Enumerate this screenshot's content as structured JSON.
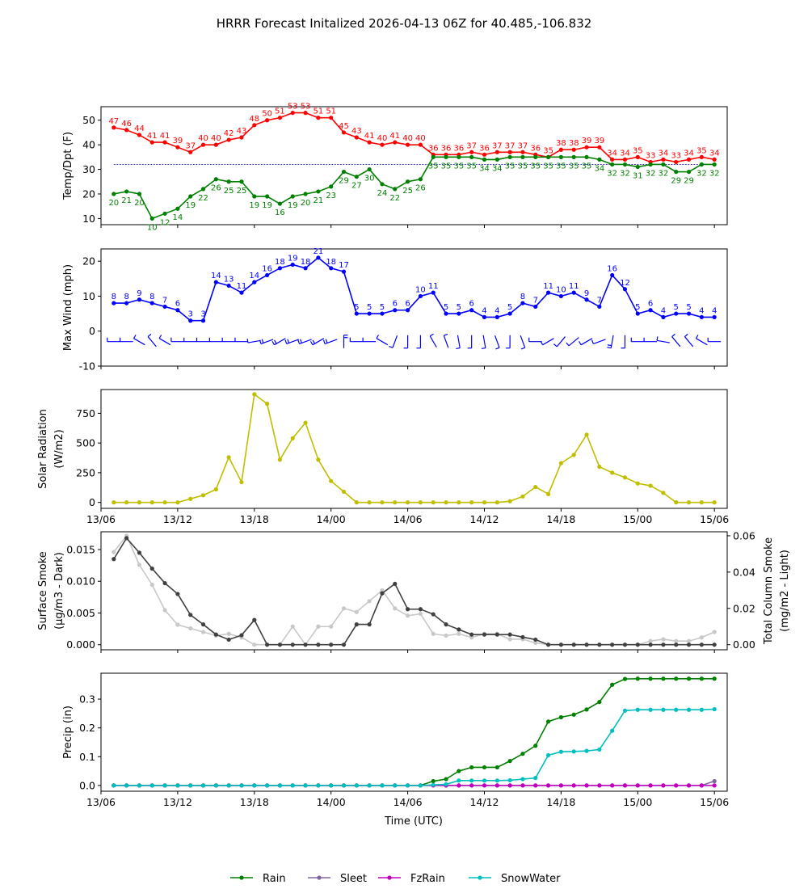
{
  "chart_data": {
    "title": "HRRR Forecast Initalized 2026-04-13 06Z for 40.485,-106.832",
    "x_tick_labels": [
      "13/06",
      "13/12",
      "13/18",
      "14/00",
      "14/06",
      "14/12",
      "14/18",
      "15/00",
      "15/06"
    ],
    "xlabel": "Time (UTC)",
    "x_hours": [
      1,
      2,
      3,
      4,
      5,
      6,
      7,
      8,
      9,
      10,
      11,
      12,
      13,
      14,
      15,
      16,
      17,
      18,
      19,
      20,
      21,
      22,
      23,
      24,
      25,
      26,
      27,
      28,
      29,
      30,
      31,
      32,
      33,
      34,
      35,
      36,
      37,
      38,
      39,
      40,
      41,
      42,
      43,
      44,
      45,
      46,
      47,
      48
    ],
    "panels": [
      {
        "type": "line",
        "ylabel": "Temp/Dpt (F)",
        "ylim": [
          7.5,
          55.5
        ],
        "yticks": [
          10,
          20,
          30,
          40,
          50
        ],
        "reference_line": 32,
        "series": [
          {
            "name": "Temp",
            "color": "#ff0000",
            "values": [
              47,
              46,
              44,
              41,
              41,
              39,
              37,
              40,
              40,
              42,
              43,
              48,
              50,
              51,
              53,
              53,
              51,
              51,
              45,
              43,
              41,
              40,
              41,
              40,
              40,
              36,
              36,
              36,
              37,
              36,
              37,
              37,
              37,
              36,
              35,
              38,
              38,
              39,
              39,
              34,
              34,
              35,
              33,
              34,
              33,
              34,
              35,
              34
            ]
          },
          {
            "name": "Dewpoint",
            "color": "#008000",
            "values": [
              20,
              21,
              20,
              10,
              12,
              14,
              19,
              22,
              26,
              25,
              25,
              19,
              19,
              16,
              19,
              20,
              21,
              23,
              29,
              27,
              30,
              24,
              22,
              25,
              26,
              35,
              35,
              35,
              35,
              34,
              34,
              35,
              35,
              35,
              35,
              35,
              35,
              35,
              34,
              32,
              32,
              31,
              32,
              32,
              29,
              29,
              32,
              32
            ]
          }
        ]
      },
      {
        "type": "line",
        "ylabel": "Max Wind (mph)",
        "ylim": [
          -10,
          23.5
        ],
        "yticks": [
          -10,
          0,
          10,
          20
        ],
        "series": [
          {
            "name": "Max Wind",
            "color": "#0000ff",
            "values": [
              8,
              8,
              9,
              8,
              7,
              6,
              3,
              3,
              14,
              13,
              11,
              14,
              16,
              18,
              19,
              18,
              21,
              18,
              17,
              5,
              5,
              5,
              6,
              6,
              10,
              11,
              5,
              5,
              6,
              4,
              4,
              5,
              8,
              7,
              11,
              10,
              11,
              9,
              7,
              16,
              12,
              5,
              6,
              4,
              5,
              5,
              4,
              4
            ]
          }
        ],
        "wind_directions_deg": [
          270,
          270,
          300,
          320,
          300,
          270,
          270,
          270,
          270,
          270,
          270,
          260,
          250,
          240,
          250,
          250,
          240,
          250,
          360,
          270,
          270,
          300,
          200,
          180,
          180,
          330,
          340,
          170,
          180,
          170,
          160,
          180,
          160,
          270,
          240,
          220,
          230,
          240,
          250,
          190,
          180,
          270,
          270,
          280,
          320,
          320,
          300,
          270
        ]
      },
      {
        "type": "line",
        "ylabel": "Solar Radiation",
        "ylabel_unit": "(W/m2)",
        "ylim": [
          -50,
          950
        ],
        "yticks": [
          0,
          250,
          500,
          750
        ],
        "series": [
          {
            "name": "Solar Radiation",
            "color": "#bfbf00",
            "values": [
              0,
              0,
              0,
              0,
              0,
              0,
              30,
              60,
              110,
              380,
              170,
              910,
              830,
              360,
              540,
              670,
              360,
              180,
              90,
              0,
              0,
              0,
              0,
              0,
              0,
              0,
              0,
              0,
              0,
              0,
              0,
              10,
              50,
              130,
              70,
              330,
              400,
              570,
              300,
              250,
              210,
              160,
              140,
              80,
              0,
              0,
              0,
              0
            ]
          }
        ]
      },
      {
        "type": "line",
        "ylabel": "Surface Smoke",
        "ylabel_unit": "(μg/m3 - Dark)",
        "ylabel_right": "Total Column Smoke",
        "ylabel_right_unit": "(mg/m2 - Light)",
        "ylim": [
          -0.0008,
          0.0178
        ],
        "yticks": [
          0.0,
          0.005,
          0.01,
          0.015
        ],
        "ytick_labels": [
          "0.000",
          "0.005",
          "0.010",
          "0.015"
        ],
        "ylim_right": [
          -0.0028,
          0.0622
        ],
        "yticks_right": [
          0.0,
          0.02,
          0.04,
          0.06
        ],
        "ytick_labels_right": [
          "0.00",
          "0.02",
          "0.04",
          "0.06"
        ],
        "series": [
          {
            "name": "Surface Smoke",
            "color": "#404040",
            "axis": "left",
            "values": [
              0.0135,
              0.0168,
              0.0145,
              0.012,
              0.0097,
              0.008,
              0.0047,
              0.0032,
              0.0016,
              0.0008,
              0.0015,
              0.0039,
              0.0,
              0.0,
              0.0,
              0.0,
              0.0,
              0.0,
              0.0,
              0.0032,
              0.0032,
              0.0081,
              0.0096,
              0.0056,
              0.0056,
              0.0048,
              0.0032,
              0.0024,
              0.0016,
              0.0016,
              0.0016,
              0.0016,
              0.0012,
              0.0008,
              0.0,
              0.0,
              0.0,
              0.0,
              0.0,
              0.0,
              0.0,
              0.0,
              0.0,
              0.0,
              0.0,
              0.0,
              0.0,
              0.0
            ]
          },
          {
            "name": "Total Column Smoke",
            "color": "#c8c8c8",
            "axis": "right",
            "values": [
              0.051,
              0.06,
              0.044,
              0.033,
              0.019,
              0.011,
              0.009,
              0.007,
              0.005,
              0.006,
              0.004,
              0.0,
              0.0,
              0.0,
              0.01,
              0.0,
              0.01,
              0.01,
              0.02,
              0.018,
              0.024,
              0.03,
              0.02,
              0.016,
              0.017,
              0.006,
              0.005,
              0.006,
              0.004,
              0.006,
              0.006,
              0.003,
              0.003,
              0.001,
              0.0,
              0.0,
              0.0,
              0.0,
              0.0,
              0.0,
              0.0,
              0.0,
              0.002,
              0.003,
              0.002,
              0.002,
              0.004,
              0.007
            ]
          }
        ]
      },
      {
        "type": "line",
        "ylabel": "Precip (in)",
        "ylim": [
          -0.02,
          0.39
        ],
        "yticks": [
          0.0,
          0.1,
          0.2,
          0.3
        ],
        "ytick_labels": [
          "0.0",
          "0.1",
          "0.2",
          "0.3"
        ],
        "series": [
          {
            "name": "Rain",
            "color": "#008000",
            "values": [
              0,
              0,
              0,
              0,
              0,
              0,
              0,
              0,
              0,
              0,
              0,
              0,
              0,
              0,
              0,
              0,
              0,
              0,
              0,
              0,
              0,
              0,
              0,
              0,
              0,
              0.015,
              0.022,
              0.05,
              0.063,
              0.063,
              0.063,
              0.085,
              0.11,
              0.138,
              0.222,
              0.237,
              0.246,
              0.264,
              0.29,
              0.35,
              0.37,
              0.371,
              0.371,
              0.371,
              0.371,
              0.371,
              0.371,
              0.371
            ]
          },
          {
            "name": "Sleet",
            "color": "#8064a2",
            "values": [
              0,
              0,
              0,
              0,
              0,
              0,
              0,
              0,
              0,
              0,
              0,
              0,
              0,
              0,
              0,
              0,
              0,
              0,
              0,
              0,
              0,
              0,
              0,
              0,
              0,
              0,
              0,
              0,
              0,
              0,
              0,
              0,
              0,
              0,
              0,
              0,
              0,
              0,
              0,
              0,
              0,
              0,
              0,
              0,
              0,
              0,
              0,
              0.015
            ]
          },
          {
            "name": "FzRain",
            "color": "#bf00bf",
            "values": [
              0,
              0,
              0,
              0,
              0,
              0,
              0,
              0,
              0,
              0,
              0,
              0,
              0,
              0,
              0,
              0,
              0,
              0,
              0,
              0,
              0,
              0,
              0,
              0,
              0,
              0,
              0,
              0,
              0,
              0,
              0,
              0,
              0,
              0,
              0,
              0,
              0,
              0,
              0,
              0,
              0,
              0,
              0,
              0,
              0,
              0,
              0,
              0
            ]
          },
          {
            "name": "SnowWater",
            "color": "#00bfbf",
            "values": [
              0,
              0,
              0,
              0,
              0,
              0,
              0,
              0,
              0,
              0,
              0,
              0,
              0,
              0,
              0,
              0,
              0,
              0,
              0,
              0,
              0,
              0,
              0,
              0,
              0,
              0.002,
              0.004,
              0.017,
              0.017,
              0.017,
              0.017,
              0.018,
              0.022,
              0.026,
              0.105,
              0.117,
              0.118,
              0.12,
              0.125,
              0.19,
              0.26,
              0.263,
              0.263,
              0.263,
              0.263,
              0.263,
              0.263,
              0.265
            ]
          }
        ]
      }
    ],
    "legend": {
      "placement": "bottom-center",
      "entries": [
        "Rain",
        "Sleet",
        "FzRain",
        "SnowWater"
      ]
    }
  }
}
